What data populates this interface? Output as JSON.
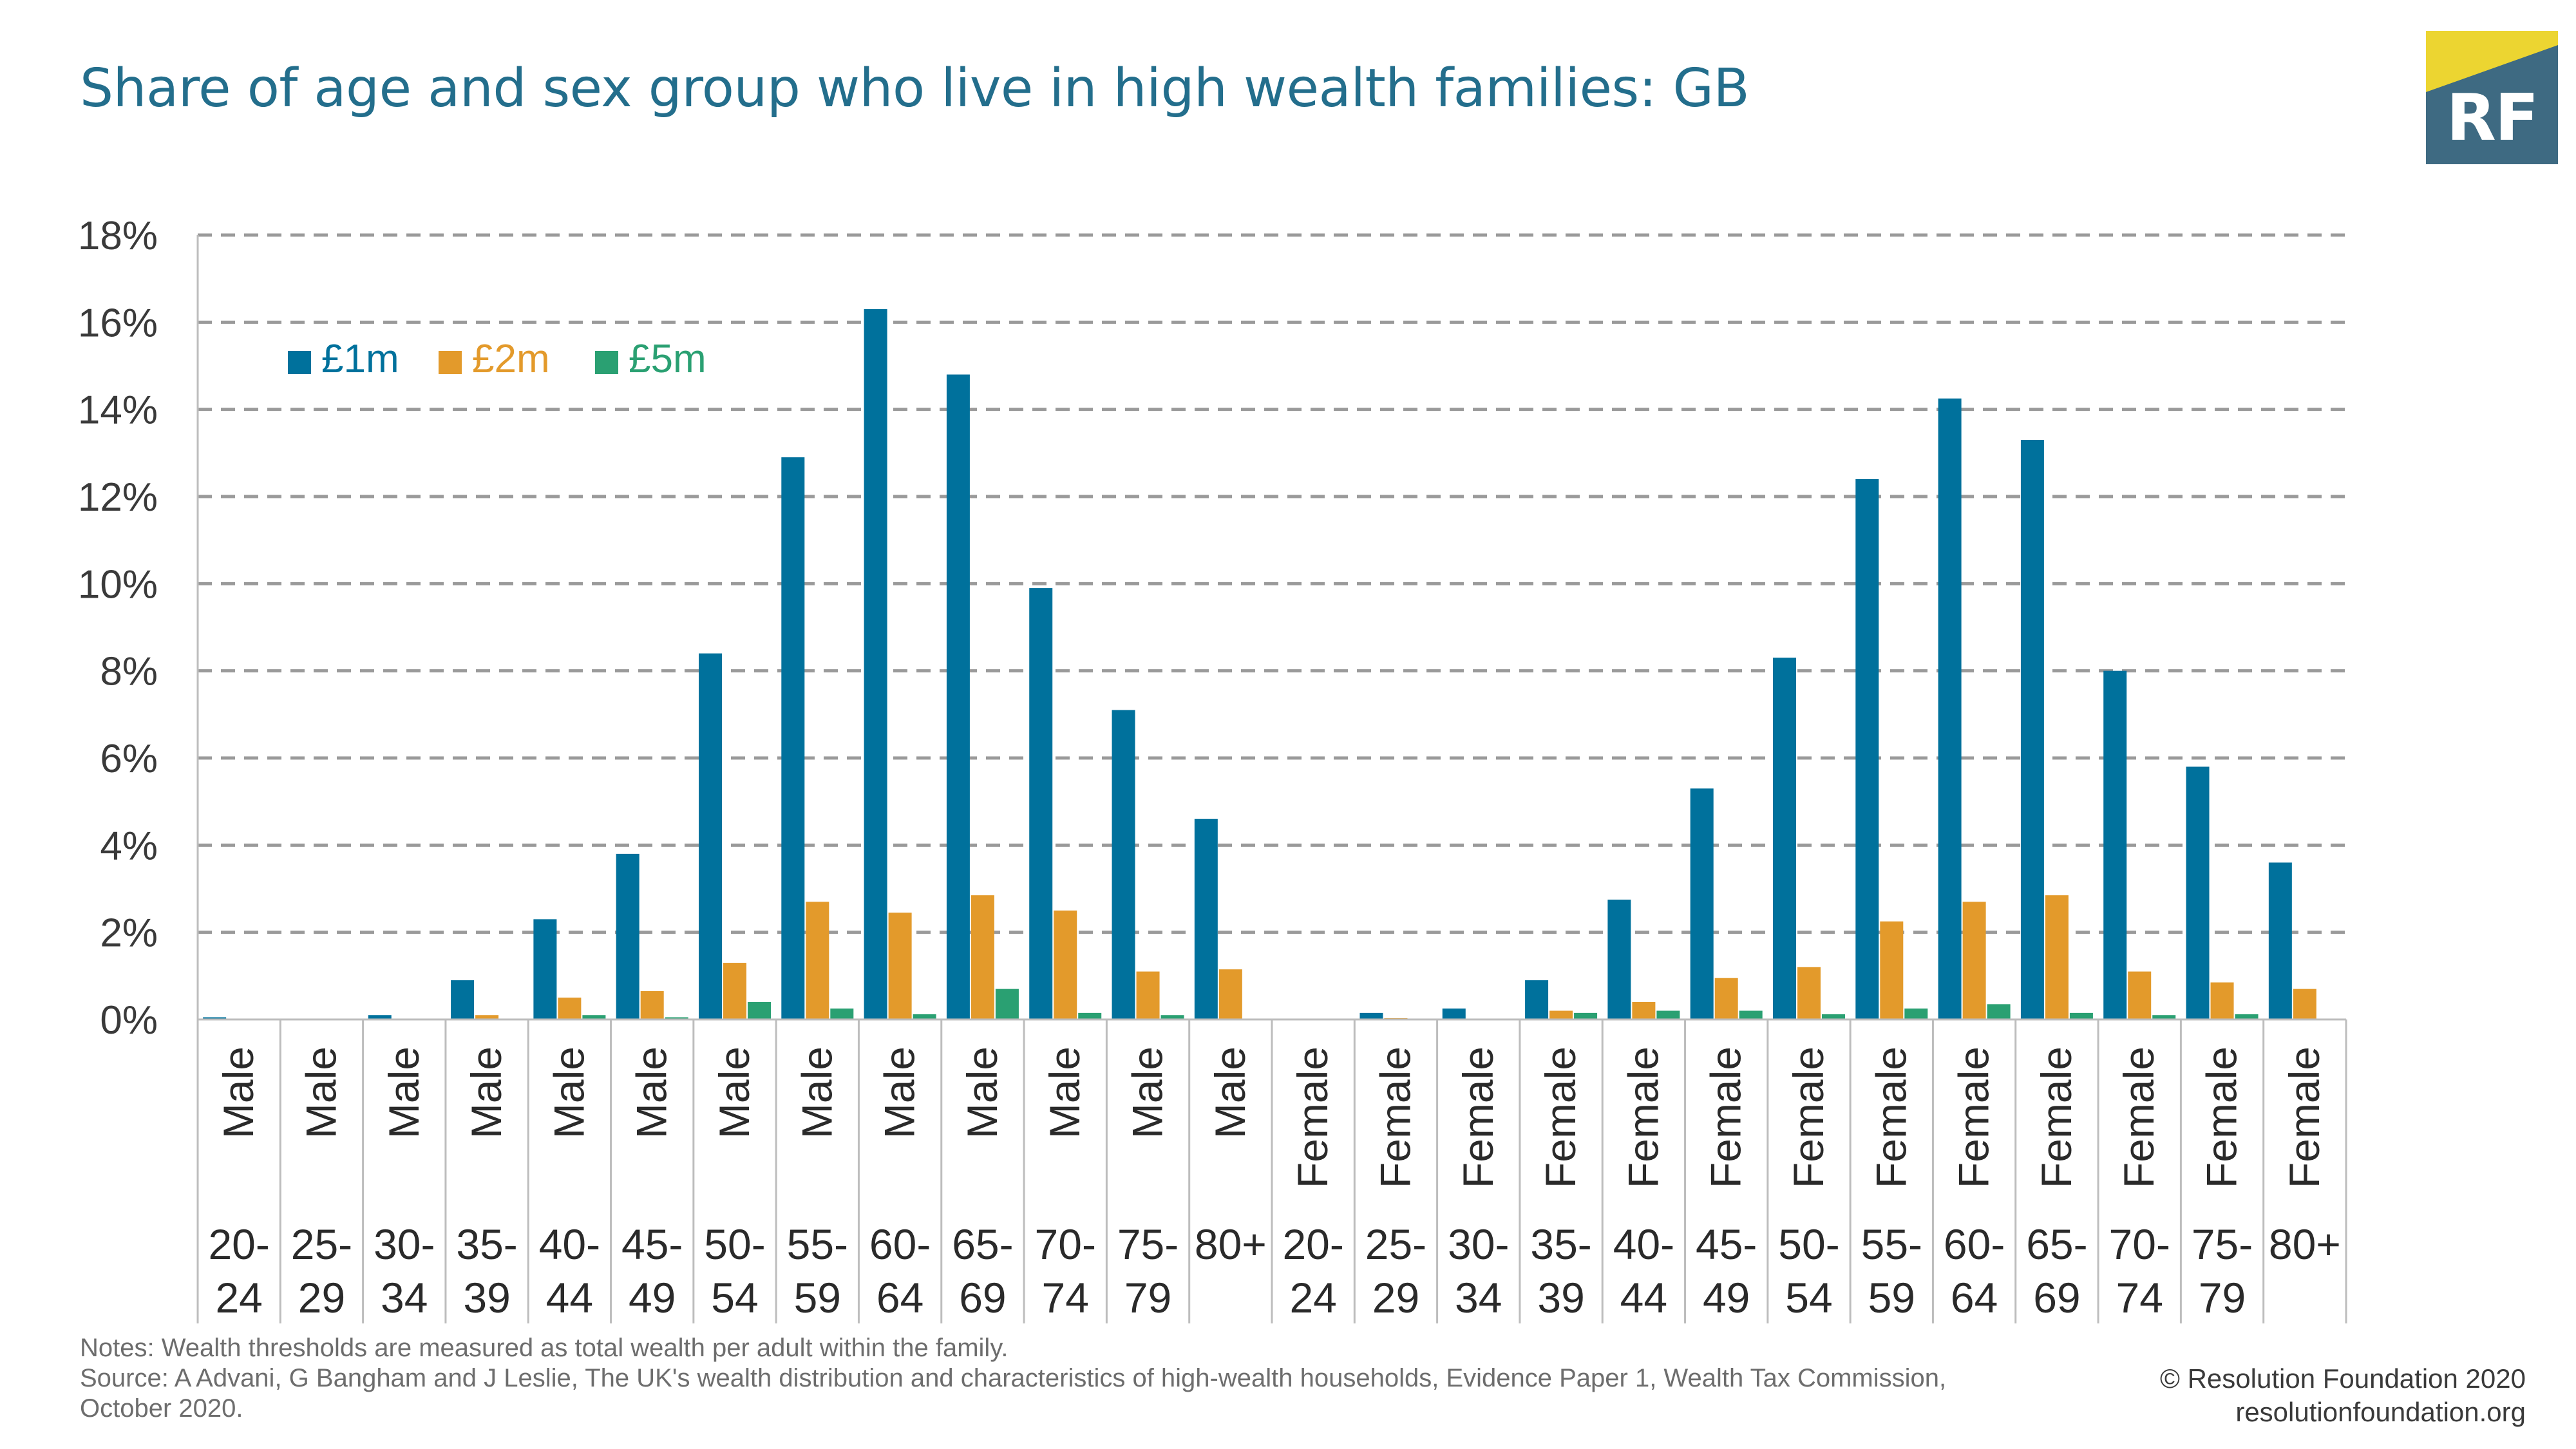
{
  "title": "Share of age and sex group who live in high wealth families: GB",
  "logo": {
    "text": "RF",
    "colors": {
      "yellow": "#ecd531",
      "blue": "#3e6a82"
    }
  },
  "notes": {
    "note": "Notes: Wealth thresholds are measured as total wealth per adult within the family.",
    "source": "Source: A Advani, G Bangham and J Leslie, The UK's wealth distribution and characteristics of high-wealth households, Evidence Paper 1, Wealth Tax Commission,",
    "source_cont": "October 2020."
  },
  "credit": {
    "line1": "© Resolution Foundation 2020",
    "line2": "resolutionfoundation.org"
  },
  "chart_data": {
    "type": "bar",
    "title": "Share of age and sex group who live in high wealth families: GB",
    "ylim": [
      0,
      18
    ],
    "yticks": [
      0,
      2,
      4,
      6,
      8,
      10,
      12,
      14,
      16,
      18
    ],
    "ytick_labels": [
      "0%",
      "2%",
      "4%",
      "6%",
      "8%",
      "10%",
      "12%",
      "14%",
      "16%",
      "18%"
    ],
    "grid": true,
    "legend_position": "top-left",
    "categories": [
      {
        "sex": "Male",
        "age": [
          "20-",
          "24"
        ]
      },
      {
        "sex": "Male",
        "age": [
          "25-",
          "29"
        ]
      },
      {
        "sex": "Male",
        "age": [
          "30-",
          "34"
        ]
      },
      {
        "sex": "Male",
        "age": [
          "35-",
          "39"
        ]
      },
      {
        "sex": "Male",
        "age": [
          "40-",
          "44"
        ]
      },
      {
        "sex": "Male",
        "age": [
          "45-",
          "49"
        ]
      },
      {
        "sex": "Male",
        "age": [
          "50-",
          "54"
        ]
      },
      {
        "sex": "Male",
        "age": [
          "55-",
          "59"
        ]
      },
      {
        "sex": "Male",
        "age": [
          "60-",
          "64"
        ]
      },
      {
        "sex": "Male",
        "age": [
          "65-",
          "69"
        ]
      },
      {
        "sex": "Male",
        "age": [
          "70-",
          "74"
        ]
      },
      {
        "sex": "Male",
        "age": [
          "75-",
          "79"
        ]
      },
      {
        "sex": "Male",
        "age": [
          "80+",
          ""
        ]
      },
      {
        "sex": "Female",
        "age": [
          "20-",
          "24"
        ]
      },
      {
        "sex": "Female",
        "age": [
          "25-",
          "29"
        ]
      },
      {
        "sex": "Female",
        "age": [
          "30-",
          "34"
        ]
      },
      {
        "sex": "Female",
        "age": [
          "35-",
          "39"
        ]
      },
      {
        "sex": "Female",
        "age": [
          "40-",
          "44"
        ]
      },
      {
        "sex": "Female",
        "age": [
          "45-",
          "49"
        ]
      },
      {
        "sex": "Female",
        "age": [
          "50-",
          "54"
        ]
      },
      {
        "sex": "Female",
        "age": [
          "55-",
          "59"
        ]
      },
      {
        "sex": "Female",
        "age": [
          "60-",
          "64"
        ]
      },
      {
        "sex": "Female",
        "age": [
          "65-",
          "69"
        ]
      },
      {
        "sex": "Female",
        "age": [
          "70-",
          "74"
        ]
      },
      {
        "sex": "Female",
        "age": [
          "75-",
          "79"
        ]
      },
      {
        "sex": "Female",
        "age": [
          "80+",
          ""
        ]
      }
    ],
    "series": [
      {
        "name": "£1m",
        "color": "#00719c",
        "values": [
          0.05,
          0,
          0.1,
          0.9,
          2.3,
          3.8,
          8.4,
          12.9,
          16.3,
          14.8,
          9.9,
          7.1,
          4.6,
          0,
          0.15,
          0.25,
          0.9,
          2.75,
          5.3,
          8.3,
          12.4,
          14.25,
          13.3,
          8.0,
          5.8,
          3.6
        ]
      },
      {
        "name": "£2m",
        "color": "#e39a2b",
        "values": [
          0,
          0,
          0,
          0.1,
          0.5,
          0.65,
          1.3,
          2.7,
          2.45,
          2.85,
          2.5,
          1.1,
          1.15,
          0,
          0.03,
          0,
          0.2,
          0.4,
          0.95,
          1.2,
          2.25,
          2.7,
          2.85,
          1.1,
          0.85,
          0.7
        ]
      },
      {
        "name": "£5m",
        "color": "#2aa072",
        "values": [
          0,
          0,
          0,
          0.02,
          0.1,
          0.05,
          0.4,
          0.25,
          0.12,
          0.7,
          0.15,
          0.1,
          0.02,
          0,
          0,
          0,
          0.15,
          0.2,
          0.2,
          0.12,
          0.25,
          0.35,
          0.15,
          0.1,
          0.12,
          0.02
        ]
      }
    ]
  }
}
